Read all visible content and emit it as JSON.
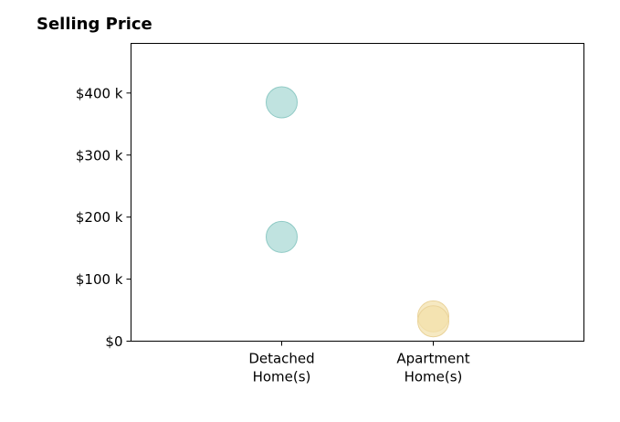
{
  "chart_data": {
    "type": "scatter",
    "title": "Selling Price",
    "xlabel": "",
    "ylabel": "",
    "categories": [
      "Detached Home(s)",
      "Apartment Home(s)"
    ],
    "category_lines": [
      [
        "Detached",
        "Home(s)"
      ],
      [
        "Apartment",
        "Home(s)"
      ]
    ],
    "ylim": [
      0,
      480000
    ],
    "yticks": [
      0,
      100000,
      200000,
      300000,
      400000
    ],
    "ytick_labels": [
      "$0",
      "$100 k",
      "$200 k",
      "$300 k",
      "$400 k"
    ],
    "series": [
      {
        "category": "Detached Home(s)",
        "color": "#a7d8d4",
        "edge_color": "#8fcac5",
        "values": [
          385000,
          168000
        ]
      },
      {
        "category": "Apartment Home(s)",
        "color": "#f3e0ab",
        "edge_color": "#ead39a",
        "values": [
          40000,
          32000
        ]
      }
    ],
    "grid": false,
    "legend": "none"
  }
}
